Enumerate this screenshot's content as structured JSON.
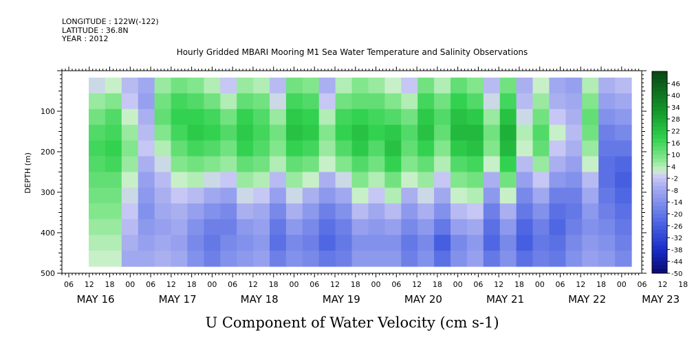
{
  "meta": {
    "longitude": "LONGITUDE : 122W(-122)",
    "latitude": "LATITUDE : 36.8N",
    "year": "YEAR : 2012"
  },
  "chart_data": {
    "type": "heatmap",
    "title": "Hourly Gridded MBARI Mooring M1 Sea Water Temperature and Salinity Observations",
    "bottom_title": "U Component of Water Velocity (cm s-1)",
    "ylabel": "DEPTH (m)",
    "y_axis": {
      "ticks": [
        100,
        200,
        300,
        400,
        500
      ],
      "tick_labels": [
        "100",
        "200",
        "300",
        "400",
        "500"
      ],
      "range": [
        0,
        500
      ],
      "inverted": true
    },
    "x_axis": {
      "hour_ticks": [
        "06",
        "12",
        "18",
        "00",
        "06",
        "12",
        "18",
        "00",
        "06",
        "12",
        "18",
        "00",
        "06",
        "12",
        "18",
        "00",
        "06",
        "12",
        "18",
        "00",
        "06",
        "12",
        "18",
        "00",
        "06",
        "12",
        "18",
        "00",
        "06",
        "12",
        "18",
        "00"
      ],
      "day_labels": [
        "MAY 16",
        "MAY 17",
        "MAY 18",
        "MAY 19",
        "MAY 20",
        "MAY 21",
        "MAY 22",
        "MAY 23"
      ]
    },
    "colorbar": {
      "ticks": [
        "46",
        "40",
        "34",
        "28",
        "22",
        "16",
        "10",
        "4",
        "-2",
        "-8",
        "-14",
        "-20",
        "-26",
        "-32",
        "-38",
        "-44",
        "-50"
      ],
      "range": [
        -50,
        52
      ]
    },
    "columns": [
      {
        "u": [
          0,
          6,
          10,
          14,
          16,
          14,
          12,
          10,
          8,
          6,
          4,
          2
        ]
      },
      {
        "u": [
          2,
          8,
          14,
          16,
          18,
          16,
          12,
          10,
          8,
          6,
          4,
          2
        ]
      },
      {
        "u": [
          -4,
          -2,
          2,
          6,
          8,
          6,
          2,
          0,
          -2,
          -4,
          -6,
          -8
        ]
      },
      {
        "u": [
          -8,
          -10,
          -6,
          -4,
          -2,
          -6,
          -10,
          -12,
          -14,
          -12,
          -10,
          -8
        ]
      },
      {
        "u": [
          6,
          10,
          12,
          8,
          4,
          0,
          -4,
          -6,
          -8,
          -10,
          -8,
          -6
        ]
      },
      {
        "u": [
          10,
          16,
          18,
          16,
          12,
          8,
          2,
          -2,
          -6,
          -8,
          -10,
          -8
        ]
      },
      {
        "u": [
          8,
          14,
          18,
          20,
          16,
          10,
          4,
          -4,
          -10,
          -14,
          -16,
          -14
        ]
      },
      {
        "u": [
          4,
          10,
          16,
          18,
          14,
          8,
          0,
          -8,
          -14,
          -18,
          -20,
          -18
        ]
      },
      {
        "u": [
          -2,
          4,
          10,
          14,
          10,
          6,
          -2,
          -10,
          -16,
          -18,
          -16,
          -14
        ]
      },
      {
        "u": [
          6,
          12,
          18,
          20,
          18,
          12,
          6,
          0,
          -6,
          -12,
          -14,
          -12
        ]
      },
      {
        "u": [
          4,
          10,
          14,
          16,
          14,
          10,
          4,
          -2,
          -8,
          -10,
          -12,
          -10
        ]
      },
      {
        "u": [
          -4,
          0,
          6,
          10,
          8,
          4,
          -4,
          -10,
          -16,
          -20,
          -22,
          -18
        ]
      },
      {
        "u": [
          10,
          16,
          20,
          22,
          18,
          12,
          6,
          0,
          -6,
          -12,
          -16,
          -14
        ]
      },
      {
        "u": [
          8,
          14,
          18,
          20,
          16,
          10,
          2,
          -6,
          -12,
          -16,
          -18,
          -16
        ]
      },
      {
        "u": [
          -6,
          -2,
          4,
          8,
          6,
          2,
          -6,
          -12,
          -18,
          -22,
          -24,
          -20
        ]
      },
      {
        "u": [
          4,
          10,
          16,
          18,
          14,
          8,
          0,
          -8,
          -14,
          -18,
          -20,
          -18
        ]
      },
      {
        "u": [
          8,
          12,
          18,
          22,
          20,
          14,
          8,
          2,
          -4,
          -10,
          -14,
          -12
        ]
      },
      {
        "u": [
          6,
          12,
          16,
          18,
          14,
          10,
          4,
          -2,
          -8,
          -12,
          -14,
          -12
        ]
      },
      {
        "u": [
          2,
          8,
          14,
          20,
          22,
          18,
          10,
          4,
          -4,
          -10,
          -14,
          -12
        ]
      },
      {
        "u": [
          -2,
          4,
          10,
          14,
          12,
          8,
          2,
          -6,
          -12,
          -16,
          -20,
          -18
        ]
      },
      {
        "u": [
          10,
          16,
          20,
          22,
          18,
          12,
          6,
          0,
          -6,
          -12,
          -16,
          -14
        ]
      },
      {
        "u": [
          4,
          10,
          14,
          12,
          8,
          4,
          -2,
          -8,
          -14,
          -20,
          -26,
          -22
        ]
      },
      {
        "u": [
          12,
          18,
          22,
          24,
          20,
          14,
          8,
          2,
          -4,
          -10,
          -16,
          -14
        ]
      },
      {
        "u": [
          8,
          14,
          20,
          24,
          22,
          16,
          10,
          4,
          -2,
          -8,
          -12,
          -10
        ]
      },
      {
        "u": [
          -4,
          0,
          6,
          10,
          8,
          2,
          -6,
          -12,
          -18,
          -22,
          -24,
          -20
        ]
      },
      {
        "u": [
          10,
          16,
          22,
          26,
          24,
          18,
          10,
          2,
          -6,
          -12,
          -16,
          -14
        ]
      },
      {
        "u": [
          -6,
          -4,
          0,
          4,
          2,
          -4,
          -10,
          -16,
          -20,
          -24,
          -26,
          -22
        ]
      },
      {
        "u": [
          2,
          6,
          10,
          14,
          12,
          6,
          -2,
          -8,
          -14,
          -18,
          -20,
          -18
        ]
      },
      {
        "u": [
          -8,
          -6,
          -2,
          2,
          -2,
          -6,
          -12,
          -18,
          -22,
          -24,
          -22,
          -20
        ]
      },
      {
        "u": [
          -10,
          -8,
          -6,
          -4,
          -6,
          -10,
          -14,
          -18,
          -20,
          -18,
          -16,
          -14
        ]
      },
      {
        "u": [
          4,
          8,
          12,
          10,
          6,
          2,
          -4,
          -8,
          -12,
          -14,
          -12,
          -10
        ]
      },
      {
        "u": [
          -6,
          -10,
          -14,
          -18,
          -20,
          -22,
          -22,
          -20,
          -18,
          -16,
          -14,
          -12
        ]
      },
      {
        "u": [
          -4,
          -8,
          -12,
          -16,
          -20,
          -24,
          -26,
          -24,
          -22,
          -20,
          -18,
          -16
        ]
      }
    ]
  }
}
